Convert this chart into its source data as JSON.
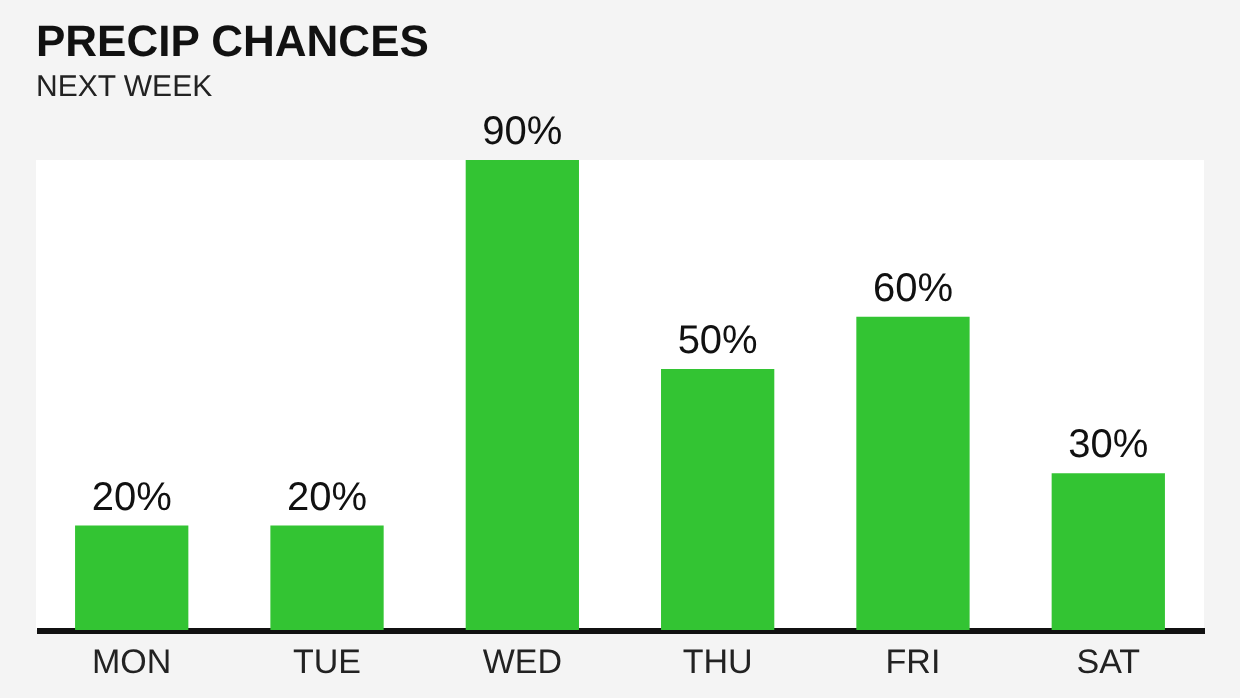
{
  "chart_data": {
    "type": "bar",
    "title": "PRECIP CHANCES",
    "subtitle": "NEXT WEEK",
    "categories": [
      "MON",
      "TUE",
      "WED",
      "THU",
      "FRI",
      "SAT"
    ],
    "values": [
      20,
      20,
      90,
      50,
      60,
      30
    ],
    "value_labels": [
      "20%",
      "20%",
      "90%",
      "50%",
      "60%",
      "30%"
    ],
    "color": "#33c433"
  }
}
